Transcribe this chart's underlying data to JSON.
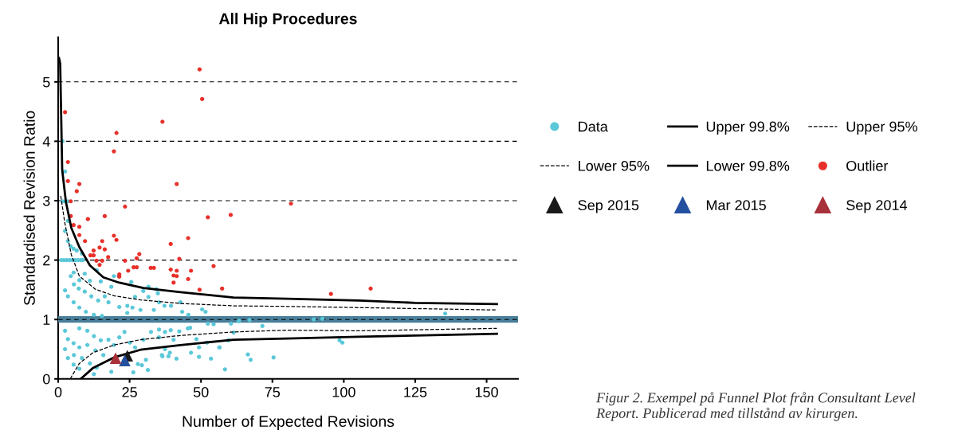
{
  "chart_data": {
    "type": "scatter",
    "title": "All Hip Procedures",
    "xlabel": "Number of Expected Revisions",
    "ylabel": "Standardised Revision Ratio",
    "xlim": [
      0,
      161
    ],
    "ylim": [
      0,
      5.75
    ],
    "xticks": [
      0,
      25,
      50,
      75,
      100,
      125,
      150
    ],
    "yticks": [
      0,
      1,
      2,
      3,
      4,
      5
    ],
    "grid": "y",
    "legend": "right",
    "ref_lines": [
      {
        "axis": "y",
        "value": 1,
        "color": "#4a7f9a"
      }
    ],
    "annotations": [
      "Figur 2. Exempel på Funnel Plot från Consultant Level Report. Publicerad med tillstånd av kirurgen."
    ],
    "series": [
      {
        "name": "Data",
        "marker": "circle",
        "color": "#5bc8d8",
        "x": [
          1.5,
          2.4,
          1.5,
          2.4,
          3.4,
          3.4,
          2.4,
          3.4,
          4.4,
          5.4,
          6.5,
          8.3,
          1.1,
          2.0,
          3.0,
          4.0,
          5.0,
          6.0,
          7.0,
          8.0,
          8.6,
          5.4,
          4.4,
          2.4,
          3.4,
          5.5,
          7.4,
          9.3,
          11.1,
          13.5,
          14.9,
          7.2,
          9.3,
          11.6,
          14.0,
          16.3,
          5.4,
          7.4,
          9.7,
          12.5,
          15.3,
          18.6,
          19.5,
          21.2,
          17.6,
          21.4,
          24.2,
          26.0,
          25.6,
          29.8,
          31.6,
          34.4,
          34.9,
          26.9,
          31.6,
          35.3,
          24.2,
          28.8,
          33.5,
          37.2,
          39.5,
          42.8,
          50.4,
          51.6,
          45.6,
          43.4,
          71.5,
          89.5,
          92.5,
          135.5,
          98.5,
          99.5,
          75.4,
          66.4,
          67.4,
          58.4,
          61.4,
          59.6,
          56.5,
          53.5,
          49.3,
          49.3,
          48.4,
          46.5,
          41.4,
          38.6,
          36.5,
          37.4,
          39.4,
          42.4,
          45.4,
          46.2,
          52.4,
          54.4,
          60.5,
          63.2,
          35.3,
          40.4,
          37.4,
          2.4,
          3.4,
          5.4,
          7.4,
          2.4,
          3.4,
          5.4,
          7.4,
          7.4,
          10.2,
          12.5,
          14.9,
          5.5,
          8.3,
          11.1,
          13.5,
          10.2,
          13.0,
          15.8,
          17.6,
          19.5,
          21.4,
          23.2,
          12.5,
          18.6,
          26.3,
          31.4,
          27.9,
          29.3,
          30.7,
          25.1,
          26.9,
          29.8,
          32.5,
          35.3,
          36.3,
          39.1,
          52.1,
          56.4,
          63.3,
          67.0
        ],
        "values": [
          4.0,
          3.49,
          2.99,
          2.99,
          2.99,
          2.66,
          2.49,
          2.32,
          2.23,
          2.19,
          2.16,
          2.11,
          2,
          2,
          2,
          2,
          2,
          2,
          2,
          2,
          2,
          1.79,
          1.73,
          1.49,
          1.39,
          1.59,
          1.66,
          1.77,
          1.65,
          1.83,
          1.64,
          1.52,
          1.47,
          1.39,
          1.32,
          1.39,
          1.29,
          1.2,
          1.13,
          1.08,
          1.06,
          1.55,
          1.73,
          1.73,
          1.29,
          1.21,
          1.11,
          1.2,
          1.63,
          1.48,
          1.55,
          1.51,
          1.44,
          1.38,
          1.38,
          1.29,
          1.23,
          1.16,
          1.16,
          1.23,
          1.23,
          1.29,
          1.17,
          1.13,
          1.08,
          1.13,
          0.89,
          1.0,
          1.01,
          1.1,
          0.65,
          0.61,
          0.36,
          0.41,
          0.32,
          0.16,
          0.78,
          0.65,
          0.53,
          0.34,
          0.37,
          0.53,
          0.67,
          0.44,
          0.34,
          0.38,
          0.38,
          0.79,
          0.82,
          0.8,
          0.85,
          0.86,
          0.93,
          0.92,
          0.93,
          0.97,
          0.7,
          0.66,
          0.5,
          0.81,
          0.67,
          0.6,
          0.53,
          0.5,
          0.35,
          0.24,
          0.17,
          0.85,
          0.81,
          0.72,
          0.65,
          0.4,
          0.35,
          0.26,
          0.19,
          0.57,
          0.48,
          0.4,
          0.66,
          0.57,
          0.7,
          0.79,
          0.08,
          0.12,
          0.11,
          0.15,
          0.25,
          0.23,
          0.32,
          0.61,
          0.53,
          0.66,
          0.79,
          0.83,
          0.4,
          0.44,
          0.61,
          0.53,
          0.98,
          0.99
        ]
      },
      {
        "name": "Upper 99.8%",
        "type": "line",
        "line_style": "solid",
        "color": "#000000",
        "x": [
          0.3,
          0.7,
          1.4,
          2.7,
          4.6,
          7.4,
          11.1,
          15.8,
          21.4,
          29.8,
          42.8,
          61.4,
          80,
          105.2,
          125,
          153.6
        ],
        "values": [
          5.4,
          5.31,
          3.52,
          2.98,
          2.54,
          2.22,
          1.91,
          1.71,
          1.62,
          1.53,
          1.46,
          1.37,
          1.35,
          1.32,
          1.28,
          1.26
        ]
      },
      {
        "name": "Upper 95%",
        "type": "line",
        "line_style": "dashed",
        "color": "#000000",
        "x": [
          0.9,
          2.3,
          4.6,
          7.4,
          13.0,
          19.5,
          28.8,
          42.8,
          61.4,
          80,
          105.2,
          153.6
        ],
        "values": [
          3.08,
          2.63,
          2.09,
          1.73,
          1.51,
          1.4,
          1.33,
          1.27,
          1.23,
          1.22,
          1.2,
          1.16
        ]
      },
      {
        "name": "Lower 95%",
        "type": "line",
        "line_style": "dashed",
        "color": "#000000",
        "x": [
          4.2,
          7.4,
          12.1,
          19.5,
          28.8,
          42.8,
          61.4,
          80,
          105.2,
          153.6
        ],
        "values": [
          0.0,
          0.26,
          0.44,
          0.57,
          0.66,
          0.73,
          0.79,
          0.82,
          0.81,
          0.85
        ]
      },
      {
        "name": "Lower 99.8%",
        "type": "line",
        "line_style": "solid",
        "color": "#000000",
        "x": [
          7.9,
          12.1,
          19.5,
          28.8,
          42.8,
          61.4,
          80,
          105.2,
          153.6
        ],
        "values": [
          0.0,
          0.18,
          0.36,
          0.49,
          0.57,
          0.66,
          0.68,
          0.71,
          0.76
        ]
      },
      {
        "name": "Outlier",
        "marker": "circle",
        "color": "#e8302a",
        "x": [
          49.5,
          50.4,
          2.4,
          36.5,
          20.4,
          19.5,
          3.4,
          3.4,
          7.4,
          6.5,
          41.5,
          4.4,
          23.4,
          4.4,
          10.4,
          16.3,
          52.4,
          60.4,
          5.4,
          7.4,
          7.4,
          19.5,
          20.4,
          9.4,
          15.4,
          39.4,
          45.5,
          12.4,
          14.5,
          16.3,
          11.3,
          12.4,
          17.5,
          28.4,
          27.5,
          13.4,
          15.4,
          23.4,
          14.5,
          42.4,
          26.4,
          27.5,
          32.4,
          33.5,
          24.5,
          39.4,
          41.5,
          46.5,
          40.4,
          41.5,
          54.4,
          21.4,
          21.4,
          40.4,
          45.5,
          49.5,
          57.4,
          81.5,
          109.4,
          95.5
        ],
        "values": [
          5.21,
          4.71,
          4.49,
          4.33,
          4.14,
          3.83,
          3.65,
          3.33,
          3.28,
          3.16,
          3.28,
          2.99,
          2.9,
          2.74,
          2.69,
          2.74,
          2.72,
          2.76,
          2.59,
          2.56,
          2.42,
          2.41,
          2.34,
          2.32,
          2.32,
          2.27,
          2.37,
          2.16,
          2.21,
          2.18,
          2.08,
          2.08,
          2.05,
          2.1,
          2.03,
          1.99,
          1.99,
          1.99,
          1.92,
          2.02,
          1.88,
          1.88,
          1.87,
          1.87,
          1.82,
          1.84,
          1.82,
          1.82,
          1.74,
          1.73,
          1.9,
          1.76,
          1.72,
          1.62,
          1.68,
          1.5,
          1.52,
          2.95,
          1.52,
          1.43
        ]
      },
      {
        "name": "Sep 2015",
        "marker": "triangle",
        "color": "#1a1a1a",
        "x": [
          24.2
        ],
        "values": [
          0.39
        ]
      },
      {
        "name": "Mar 2015",
        "marker": "triangle",
        "color": "#2450a0",
        "x": [
          23.3
        ],
        "values": [
          0.31
        ]
      },
      {
        "name": "Sep 2014",
        "marker": "triangle",
        "color": "#a8303a",
        "x": [
          20.1
        ],
        "values": [
          0.35
        ]
      }
    ]
  }
}
